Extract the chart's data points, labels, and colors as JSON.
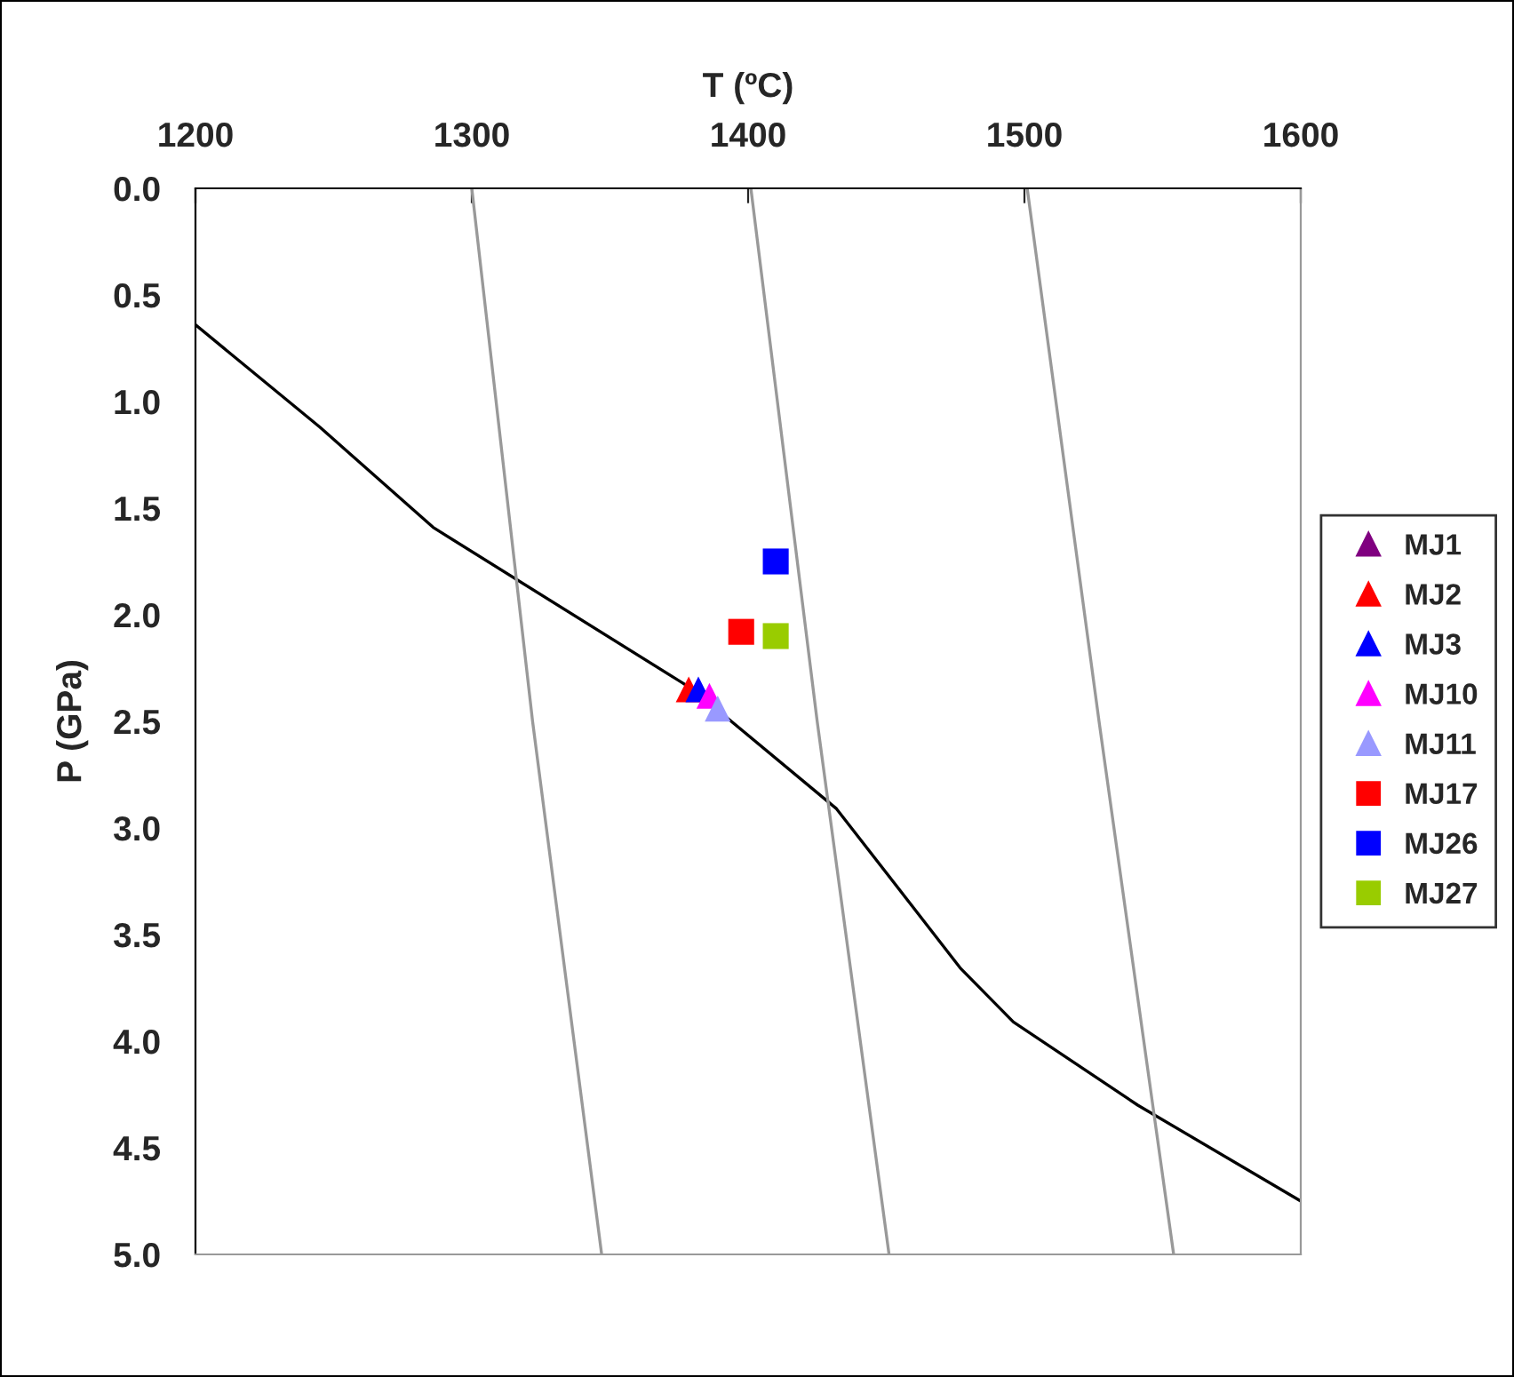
{
  "chart_data": {
    "type": "scatter",
    "xlabel": "T (ºC)",
    "ylabel": "P (GPa)",
    "xlim": [
      1200,
      1600
    ],
    "xticks": [
      1200,
      1300,
      1400,
      1500,
      1600
    ],
    "ylim": [
      5.0,
      0.0
    ],
    "yticks": [
      {
        "value": 0,
        "label": "0.0"
      },
      {
        "value": 0.5,
        "label": "0.5"
      },
      {
        "value": 1,
        "label": "1.0"
      },
      {
        "value": 1.5,
        "label": "1.5"
      },
      {
        "value": 2,
        "label": "2.0"
      },
      {
        "value": 2.5,
        "label": "2.5"
      },
      {
        "value": 3,
        "label": "3.0"
      },
      {
        "value": 3.5,
        "label": "3.5"
      },
      {
        "value": 4,
        "label": "4.0"
      },
      {
        "value": 4.5,
        "label": "4.5"
      },
      {
        "value": 5,
        "label": "5.0"
      }
    ],
    "legend": "right",
    "grid": false,
    "series": [
      {
        "type": "line",
        "color": "#000000",
        "x": [
          1200,
          1245,
          1286,
          1380,
          1432,
          1477,
          1496,
          1541,
          1600
        ],
        "values": [
          0.64,
          1.12,
          1.59,
          2.35,
          2.91,
          3.66,
          3.91,
          4.3,
          4.75
        ]
      },
      {
        "type": "line",
        "color": "#999999",
        "x": [
          1300,
          1322,
          1347
        ],
        "values": [
          0.0,
          2.5,
          5.0
        ]
      },
      {
        "type": "line",
        "color": "#999999",
        "x": [
          1401,
          1425,
          1451
        ],
        "values": [
          0.0,
          2.5,
          5.0
        ]
      },
      {
        "type": "line",
        "color": "#999999",
        "x": [
          1501,
          1527,
          1554
        ],
        "values": [
          0.0,
          2.5,
          5.0
        ]
      },
      {
        "name": "MJ1",
        "marker": "triangle",
        "color": "#800080",
        "x": [
          null
        ],
        "values": [
          null
        ]
      },
      {
        "name": "MJ2",
        "marker": "triangle",
        "color": "#ff0000",
        "x": [
          1378.5
        ],
        "values": [
          2.35
        ]
      },
      {
        "name": "MJ3",
        "marker": "triangle",
        "color": "#0000ff",
        "x": [
          1382
        ],
        "values": [
          2.35
        ]
      },
      {
        "name": "MJ10",
        "marker": "triangle",
        "color": "#ff00ff",
        "x": [
          1386
        ],
        "values": [
          2.38
        ]
      },
      {
        "name": "MJ11",
        "marker": "triangle",
        "color": "#9999ff",
        "x": [
          1389
        ],
        "values": [
          2.44
        ]
      },
      {
        "name": "MJ17",
        "marker": "square",
        "color": "#ff0000",
        "x": [
          1397.5
        ],
        "values": [
          2.08
        ]
      },
      {
        "name": "MJ26",
        "marker": "square",
        "color": "#0000ff",
        "x": [
          1410
        ],
        "values": [
          1.75
        ]
      },
      {
        "name": "MJ27",
        "marker": "square",
        "color": "#99cc00",
        "x": [
          1410
        ],
        "values": [
          2.1
        ]
      }
    ]
  }
}
